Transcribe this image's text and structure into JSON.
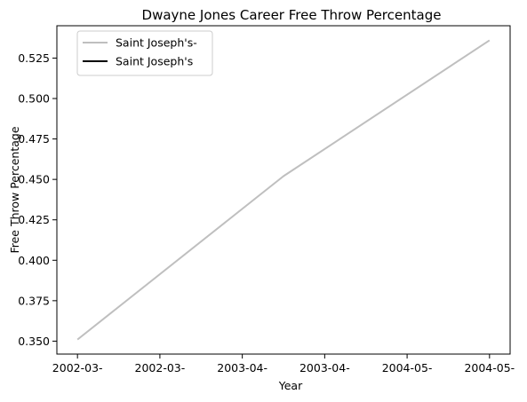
{
  "chart_data": {
    "type": "line",
    "title": "Dwayne Jones  Career Free Throw Percentage",
    "xlabel": "Year",
    "ylabel": "Free Throw Percentage",
    "x_tick_labels": [
      "2002-03-",
      "2002-03-",
      "2003-04-",
      "2003-04-",
      "2004-05-",
      "2004-05-"
    ],
    "xlim": [
      -0.1,
      2.1
    ],
    "ylim": [
      0.342,
      0.545
    ],
    "y_ticks": [
      0.35,
      0.375,
      0.4,
      0.425,
      0.45,
      0.475,
      0.5,
      0.525
    ],
    "y_tick_labels": [
      "0.350",
      "0.375",
      "0.400",
      "0.425",
      "0.450",
      "0.475",
      "0.500",
      "0.525"
    ],
    "grid": false,
    "legend_position": "top-left",
    "series": [
      {
        "name": "Saint Joseph's-",
        "color": "#bfbfbf",
        "x": [
          0,
          1,
          2
        ],
        "y": [
          0.351,
          0.452,
          0.536
        ]
      },
      {
        "name": "Saint Joseph's",
        "color": "#000000",
        "x": [],
        "y": []
      }
    ]
  }
}
